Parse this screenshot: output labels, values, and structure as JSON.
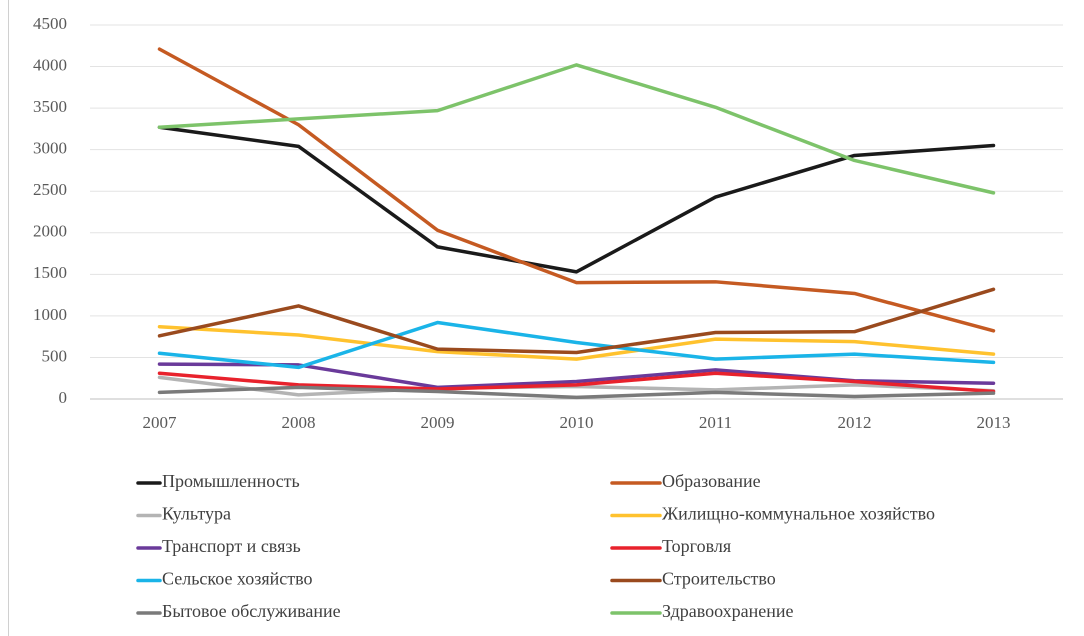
{
  "chart_data": {
    "type": "line",
    "categories": [
      "2007",
      "2008",
      "2009",
      "2010",
      "2011",
      "2012",
      "2013"
    ],
    "series": [
      {
        "name": "Промышленность",
        "color": "#1a1a1a",
        "values": [
          3270,
          3040,
          1830,
          1530,
          2430,
          2930,
          3050
        ]
      },
      {
        "name": "Образование",
        "color": "#c55a22",
        "values": [
          4210,
          3300,
          2030,
          1400,
          1410,
          1270,
          820
        ]
      },
      {
        "name": "Культура",
        "color": "#b4b4b4",
        "values": [
          260,
          50,
          130,
          150,
          110,
          170,
          100
        ]
      },
      {
        "name": "Жилищно-коммунальное хозяйство",
        "color": "#ffc22e",
        "values": [
          870,
          770,
          570,
          480,
          720,
          690,
          540
        ]
      },
      {
        "name": "Транспорт и связь",
        "color": "#6a3a9a",
        "values": [
          420,
          410,
          140,
          210,
          350,
          220,
          190
        ]
      },
      {
        "name": "Торговля",
        "color": "#e8222c",
        "values": [
          310,
          170,
          120,
          170,
          310,
          210,
          90
        ]
      },
      {
        "name": "Сельское хозяйство",
        "color": "#1ab4e8",
        "values": [
          550,
          380,
          920,
          680,
          480,
          540,
          440
        ]
      },
      {
        "name": "Строительство",
        "color": "#9a4a1e",
        "values": [
          760,
          1120,
          600,
          560,
          800,
          810,
          1320
        ]
      },
      {
        "name": "Бытовое обслуживание",
        "color": "#7a7a7a",
        "values": [
          80,
          140,
          90,
          20,
          80,
          30,
          70
        ]
      },
      {
        "name": "Здравоохранение",
        "color": "#7dc36a",
        "values": [
          3270,
          3370,
          3470,
          4020,
          3510,
          2870,
          2480
        ]
      }
    ],
    "ylim": [
      0,
      4500
    ],
    "yticks": [
      0,
      500,
      1000,
      1500,
      2000,
      2500,
      3000,
      3500,
      4000,
      4500
    ],
    "grid": true,
    "legend": "bottom"
  }
}
